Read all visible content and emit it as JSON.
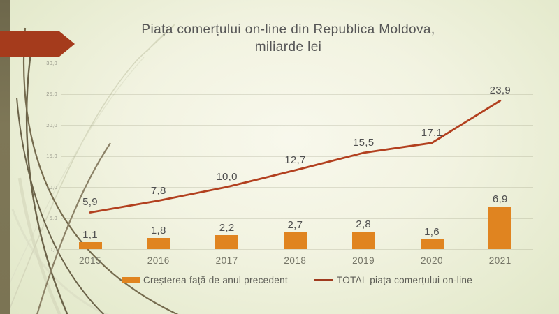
{
  "title": {
    "line1": "Piața comerțului on-line din Republica Moldova,",
    "line2": "miliarde lei"
  },
  "chart_data": {
    "type": "combo",
    "categories": [
      "2015",
      "2016",
      "2017",
      "2018",
      "2019",
      "2020",
      "2021"
    ],
    "series": [
      {
        "name": "Creșterea față de anul precedent",
        "type": "bar",
        "color": "#e08420",
        "values": [
          1.1,
          1.8,
          2.2,
          2.7,
          2.8,
          1.6,
          6.9
        ],
        "labels": [
          "1,1",
          "1,8",
          "2,2",
          "2,7",
          "2,8",
          "1,6",
          "6,9"
        ]
      },
      {
        "name": "TOTAL piața comerțului on-line",
        "type": "line",
        "color": "#b2401f",
        "values": [
          5.9,
          7.8,
          10.0,
          12.7,
          15.5,
          17.1,
          23.9
        ],
        "labels": [
          "5,9",
          "7,8",
          "10,0",
          "12,7",
          "15,5",
          "17,1",
          "23,9"
        ]
      }
    ],
    "ylim": [
      0,
      30
    ],
    "yticks": [
      "30,0",
      "25,0",
      "20,0",
      "15,0",
      "10,0",
      "5,0",
      "0,0"
    ],
    "grid": true,
    "legend_position": "bottom"
  },
  "colors": {
    "accent_arrow": "#a53b1c",
    "stripe": "#7b7454",
    "background_center": "#f8f8ec",
    "background_edge": "#dde4c3",
    "bar": "#e08420",
    "line": "#b2401f",
    "text": "#565656"
  }
}
